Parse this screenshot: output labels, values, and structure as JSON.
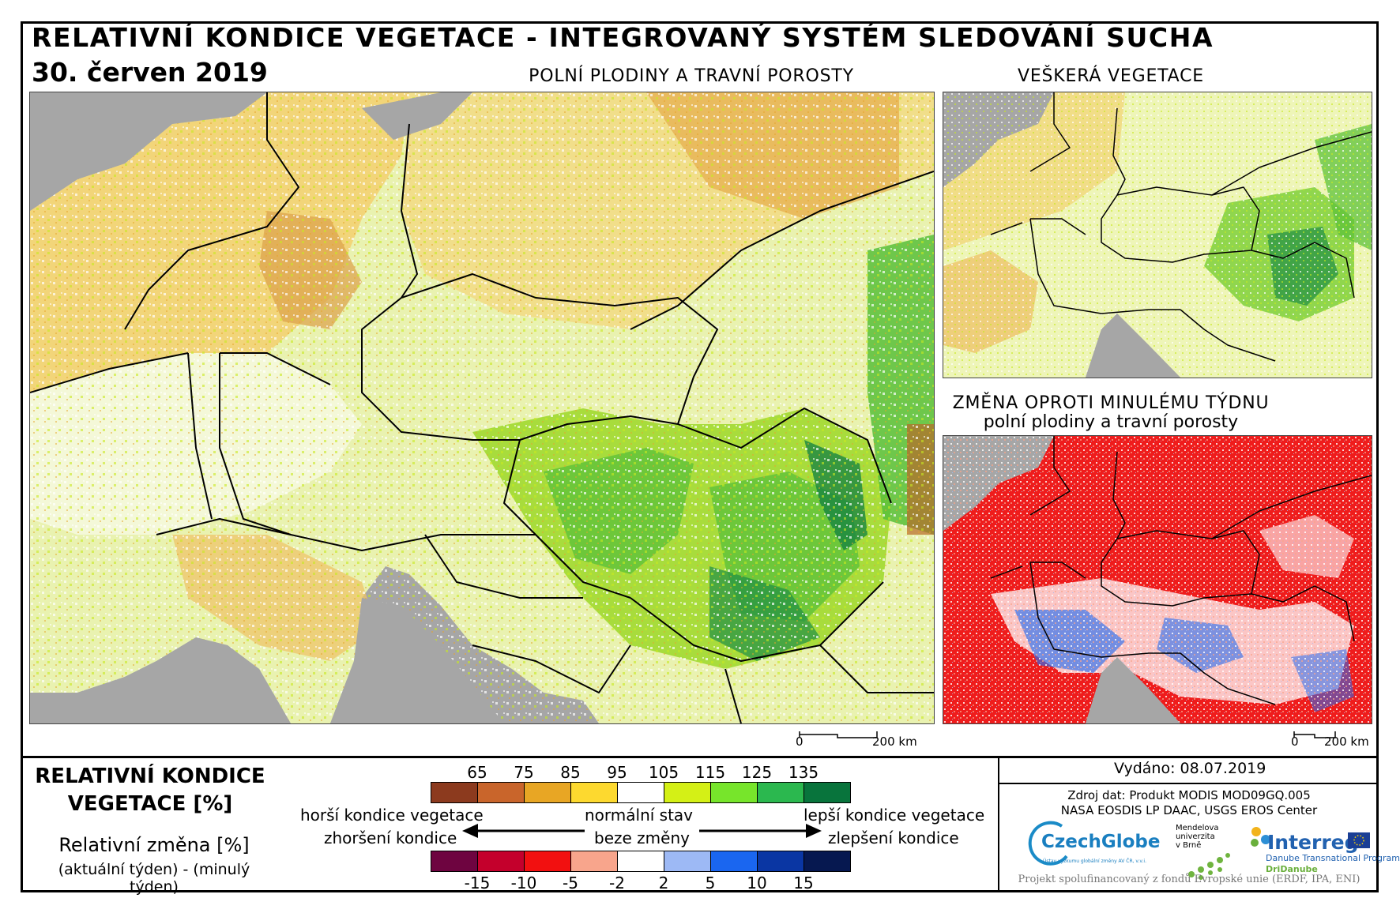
{
  "header": {
    "title": "RELATIVNÍ KONDICE VEGETACE - INTEGROVANÝ SYSTÉM SLEDOVÁNÍ SUCHA",
    "date": "30. červen 2019"
  },
  "maps": {
    "main_title": "POLNÍ PLODINY A TRAVNÍ POROSTY",
    "top_right_title": "VEŠKERÁ VEGETACE",
    "bottom_right_title_line1": "ZMĚNA OPROTI MINULÉMU TÝDNU",
    "bottom_right_title_line2": "polní plodiny a travní porosty"
  },
  "scalebar": {
    "zero": "0",
    "distance": "200 km"
  },
  "legend": {
    "title_line1": "RELATIVNÍ KONDICE",
    "title_line2": "VEGETACE [%]",
    "change_title": "Relativní změna [%]",
    "change_subtitle": "(aktuální týden) - (minulý týden)",
    "worse_label": "horší kondice vegetace",
    "normal_label": "normální stav",
    "better_label": "lepší kondice vegetace",
    "worse_change_label": "zhoršení kondice",
    "no_change_label": "beze změny",
    "better_change_label": "zlepšení kondice",
    "condition_ticks": [
      "65",
      "75",
      "85",
      "95",
      "105",
      "115",
      "125",
      "135"
    ],
    "condition_colors": [
      "#8c3a1e",
      "#c9652b",
      "#e8a624",
      "#fdd92f",
      "#ffffff",
      "#d4f016",
      "#77e52b",
      "#2bb84f",
      "#08743c"
    ],
    "change_ticks": [
      "-15",
      "-10",
      "-5",
      "-2",
      "2",
      "5",
      "10",
      "15"
    ],
    "change_colors": [
      "#6e0440",
      "#c4002c",
      "#f21010",
      "#f8a58c",
      "#ffffff",
      "#9db9f5",
      "#1a66f0",
      "#0a36a3",
      "#061850"
    ]
  },
  "info": {
    "issued": "Vydáno: 08.07.2019",
    "source_line1": "Zdroj dat: Produkt MODIS MOD09GQ.005",
    "source_line2": "NASA EOSDIS LP DAAC, USGS EROS Center",
    "czechglobe": "CzechGlobe",
    "czechglobe_sub": "Ústav výzkumu globální změny AV ČR, v.v.i.",
    "mendel_line1": "Mendelova",
    "mendel_line2": "univerzita",
    "mendel_line3": "v Brně",
    "interreg": "Interreg",
    "interreg_sub1": "Danube Transnational Programme",
    "interreg_sub2": "DriDanube",
    "cofinance": "Projekt spolufinancovaný z fondů Evropské unie (ERDF, IPA, ENI)"
  }
}
